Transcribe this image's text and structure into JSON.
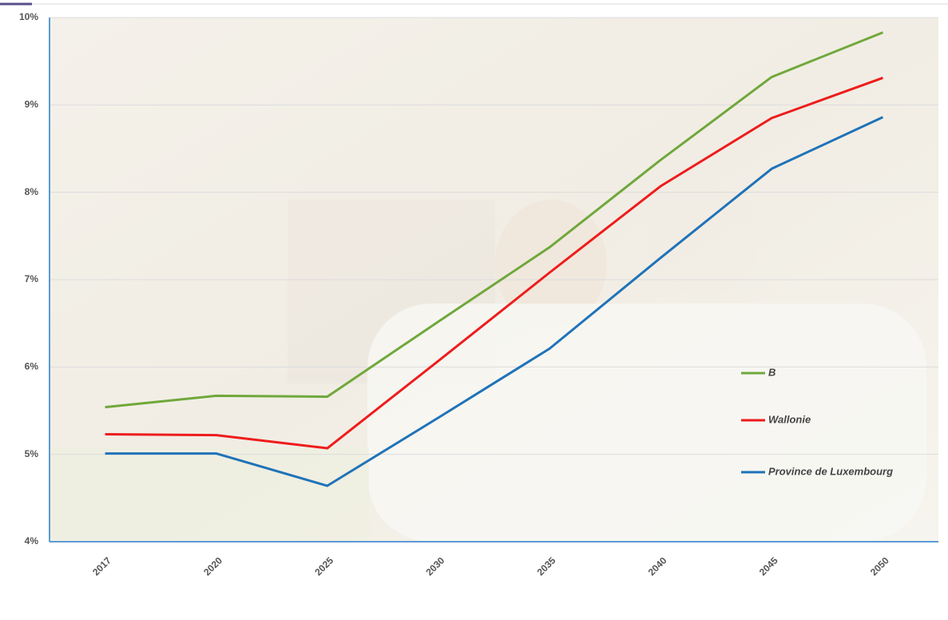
{
  "chart_data": {
    "type": "line",
    "categories": [
      "2017",
      "2020",
      "2025",
      "2030",
      "2035",
      "2040",
      "2045",
      "2050"
    ],
    "series": [
      {
        "name": "B",
        "color": "#70a83c",
        "values": [
          5.54,
          5.67,
          5.66,
          6.52,
          7.37,
          8.37,
          9.32,
          9.83
        ]
      },
      {
        "name": "Wallonie",
        "color": "#ee1c1c",
        "values": [
          5.23,
          5.22,
          5.07,
          6.07,
          7.08,
          8.07,
          8.85,
          9.31
        ]
      },
      {
        "name": "Province de Luxembourg",
        "color": "#1f73b8",
        "values": [
          5.01,
          5.01,
          4.64,
          5.42,
          6.21,
          7.25,
          8.27,
          8.86
        ]
      }
    ],
    "ylim": [
      4,
      10
    ],
    "yticks": [
      {
        "value": 4,
        "label": "4%"
      },
      {
        "value": 5,
        "label": "5%"
      },
      {
        "value": 6,
        "label": "6%"
      },
      {
        "value": 7,
        "label": "7%"
      },
      {
        "value": 8,
        "label": "8%"
      },
      {
        "value": 9,
        "label": "9%"
      },
      {
        "value": 10,
        "label": "10%"
      }
    ],
    "grid": true
  }
}
